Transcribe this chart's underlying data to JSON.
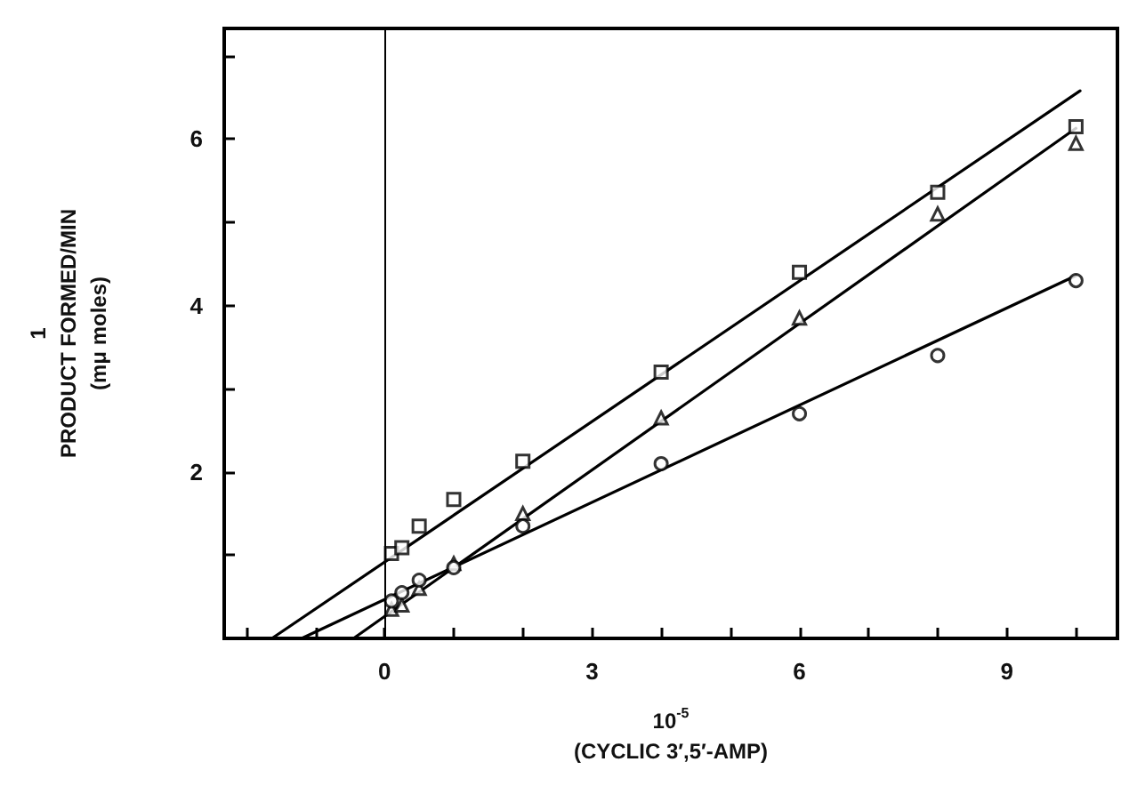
{
  "chart_data": {
    "type": "scatter",
    "xlabel": "10$^{-5}$\n(CYCLIC 3′,5′-AMP)",
    "ylabel": "1\nPRODUCT FORMED/MIN\n(mμ moles)",
    "xlim": [
      -2.32,
      10.6
    ],
    "ylim": [
      0,
      7.33
    ],
    "xticks": [
      {
        "value": -2,
        "label": null
      },
      {
        "value": -1,
        "label": null
      },
      0,
      {
        "value": 1,
        "label": null
      },
      {
        "value": 2,
        "label": null
      },
      3,
      {
        "value": 4,
        "label": null
      },
      {
        "value": 5,
        "label": null
      },
      6,
      {
        "value": 7,
        "label": null
      },
      {
        "value": 8,
        "label": null
      },
      9,
      {
        "value": 10,
        "label": null
      }
    ],
    "yticks": [
      {
        "value": 1,
        "label": null
      },
      2,
      {
        "value": 3,
        "label": null
      },
      4,
      {
        "value": 5,
        "label": null
      },
      6,
      {
        "value": 7,
        "label": null
      }
    ],
    "grid": false,
    "ref_lines": [
      {
        "axis": "x",
        "value": 0,
        "color": "#000000"
      }
    ],
    "series": [
      {
        "marker": "square",
        "color": "#000000",
        "x": [
          0.1,
          0.25,
          0.5,
          1,
          2,
          4,
          6,
          8,
          10
        ],
        "values": [
          1.02,
          1.09,
          1.35,
          1.67,
          2.13,
          3.2,
          4.4,
          5.36,
          6.15
        ]
      },
      {
        "marker": "triangle",
        "color": "#000000",
        "x": [
          0.1,
          0.25,
          0.5,
          1,
          2,
          4,
          6,
          8,
          10
        ],
        "values": [
          0.35,
          0.4,
          0.6,
          0.9,
          1.5,
          2.65,
          3.85,
          5.1,
          5.95
        ]
      },
      {
        "marker": "circle",
        "color": "#000000",
        "x": [
          0.1,
          0.25,
          0.5,
          1,
          2,
          4,
          6,
          8,
          10
        ],
        "values": [
          0.45,
          0.55,
          0.7,
          0.85,
          1.35,
          2.1,
          2.7,
          3.4,
          4.3
        ]
      },
      {
        "type": "line",
        "marker": "none",
        "color": "#000000",
        "x": [
          -1.63,
          10.06
        ],
        "values": [
          0,
          6.58
        ]
      },
      {
        "type": "line",
        "marker": "none",
        "color": "#000000",
        "x": [
          -0.45,
          10
        ],
        "values": [
          0,
          6.13
        ]
      },
      {
        "type": "line",
        "marker": "none",
        "color": "#000000",
        "x": [
          -1.2,
          10
        ],
        "values": [
          0,
          4.36
        ]
      }
    ]
  }
}
